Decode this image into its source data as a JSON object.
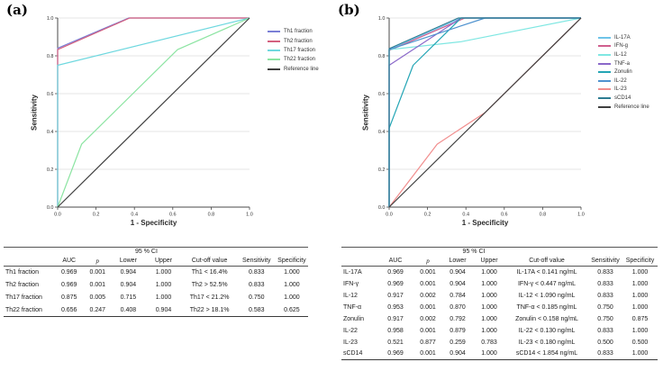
{
  "figure": {
    "panel_a_label": "(a)",
    "panel_b_label": "(b)"
  },
  "chart_data": [
    {
      "type": "line",
      "title": "",
      "xlabel": "1 - Specificity",
      "ylabel": "Sensitivity",
      "xlim": [
        0.0,
        1.0
      ],
      "ylim": [
        0.0,
        1.0
      ],
      "xticks": [
        "0.0",
        "0.2",
        "0.4",
        "0.6",
        "0.8",
        "1.0"
      ],
      "yticks": [
        "0.0",
        "0.2",
        "0.4",
        "0.6",
        "0.8",
        "1.0"
      ],
      "grid": "horizontal",
      "legend_position": "right",
      "series": [
        {
          "name": "Th1 fraction",
          "color": "#7b7fd6",
          "points": [
            [
              0,
              0
            ],
            [
              0,
              0.84
            ],
            [
              0.37,
              1
            ],
            [
              1,
              1
            ]
          ]
        },
        {
          "name": "Th2 fraction",
          "color": "#d4607e",
          "points": [
            [
              0,
              0
            ],
            [
              0,
              0.833
            ],
            [
              0.375,
              1
            ],
            [
              1,
              1
            ]
          ]
        },
        {
          "name": "Th17 fraction",
          "color": "#6fd8df",
          "points": [
            [
              0,
              0
            ],
            [
              0,
              0.75
            ],
            [
              1,
              1
            ]
          ]
        },
        {
          "name": "Th22 fraction",
          "color": "#8ce4a2",
          "points": [
            [
              0,
              0
            ],
            [
              0.125,
              0.333
            ],
            [
              0.625,
              0.833
            ],
            [
              1,
              1
            ]
          ]
        },
        {
          "name": "Reference line",
          "color": "#3f3f3f",
          "points": [
            [
              0,
              0
            ],
            [
              1,
              1
            ]
          ]
        }
      ]
    },
    {
      "type": "line",
      "title": "",
      "xlabel": "1 - Specificity",
      "ylabel": "Sensitivity",
      "xlim": [
        0.0,
        1.0
      ],
      "ylim": [
        0.0,
        1.0
      ],
      "xticks": [
        "0.0",
        "0.2",
        "0.4",
        "0.6",
        "0.8",
        "1.0"
      ],
      "yticks": [
        "0.0",
        "0.2",
        "0.4",
        "0.6",
        "0.8",
        "1.0"
      ],
      "grid": "horizontal",
      "legend_position": "right",
      "series": [
        {
          "name": "IL-17A",
          "color": "#6fc4e8",
          "points": [
            [
              0,
              0
            ],
            [
              0,
              0.833
            ],
            [
              0.375,
              1
            ],
            [
              1,
              1
            ]
          ]
        },
        {
          "name": "IFN-g",
          "color": "#d05f8e",
          "points": [
            [
              0,
              0
            ],
            [
              0,
              0.828
            ],
            [
              0.395,
              1
            ],
            [
              1,
              1
            ]
          ]
        },
        {
          "name": "IL-12",
          "color": "#7fe7e2",
          "points": [
            [
              0,
              0
            ],
            [
              0,
              0.833
            ],
            [
              0.375,
              0.875
            ],
            [
              1,
              1
            ]
          ]
        },
        {
          "name": "TNF-a",
          "color": "#8a68c9",
          "points": [
            [
              0,
              0
            ],
            [
              0,
              0.75
            ],
            [
              0.375,
              1
            ],
            [
              1,
              1
            ]
          ]
        },
        {
          "name": "Zonulin",
          "color": "#24a5b5",
          "points": [
            [
              0,
              0
            ],
            [
              0,
              0.417
            ],
            [
              0.125,
              0.75
            ],
            [
              0.375,
              1
            ],
            [
              1,
              1
            ]
          ]
        },
        {
          "name": "IL-22",
          "color": "#4f92cf",
          "points": [
            [
              0,
              0
            ],
            [
              0,
              0.833
            ],
            [
              0.5,
              1
            ],
            [
              1,
              1
            ]
          ]
        },
        {
          "name": "IL-23",
          "color": "#f18e8e",
          "points": [
            [
              0,
              0
            ],
            [
              0.25,
              0.333
            ],
            [
              0.5,
              0.5
            ],
            [
              1,
              1
            ]
          ]
        },
        {
          "name": "sCD14",
          "color": "#2e7c92",
          "points": [
            [
              0,
              0
            ],
            [
              0,
              0.838
            ],
            [
              0.36,
              1
            ],
            [
              1,
              1
            ]
          ]
        },
        {
          "name": "Reference line",
          "color": "#3f3f3f",
          "points": [
            [
              0,
              0
            ],
            [
              1,
              1
            ]
          ]
        }
      ]
    }
  ],
  "tables": [
    {
      "ci_header": "95 % CI",
      "columns": [
        "",
        "AUC",
        "p",
        "Lower",
        "Upper",
        "Cut-off value",
        "Sensitivity",
        "Specificity"
      ],
      "rows": [
        [
          "Th1 fraction",
          "0.969",
          "0.001",
          "0.904",
          "1.000",
          "Th1 < 16.4%",
          "0.833",
          "1.000"
        ],
        [
          "Th2 fraction",
          "0.969",
          "0.001",
          "0.904",
          "1.000",
          "Th2 > 52.5%",
          "0.833",
          "1.000"
        ],
        [
          "Th17 fraction",
          "0.875",
          "0.005",
          "0.715",
          "1.000",
          "Th17 < 21.2%",
          "0.750",
          "1.000"
        ],
        [
          "Th22 fraction",
          "0.656",
          "0.247",
          "0.408",
          "0.904",
          "Th22 > 18.1%",
          "0.583",
          "0.625"
        ]
      ]
    },
    {
      "ci_header": "95 % CI",
      "columns": [
        "",
        "AUC",
        "p",
        "Lower",
        "Upper",
        "Cut-off value",
        "Sensitivity",
        "Specificity"
      ],
      "rows": [
        [
          "IL-17A",
          "0.969",
          "0.001",
          "0.904",
          "1.000",
          "IL-17A < 0.141 ng/mL",
          "0.833",
          "1.000"
        ],
        [
          "IFN-γ",
          "0.969",
          "0.001",
          "0.904",
          "1.000",
          "IFN-γ < 0.447 ng/mL",
          "0.833",
          "1.000"
        ],
        [
          "IL-12",
          "0.917",
          "0.002",
          "0.784",
          "1.000",
          "IL-12 < 1.090 ng/mL",
          "0.833",
          "1.000"
        ],
        [
          "TNF-α",
          "0.953",
          "0.001",
          "0.870",
          "1.000",
          "TNF-α < 0.185 ng/mL",
          "0.750",
          "1.000"
        ],
        [
          "Zonulin",
          "0.917",
          "0.002",
          "0.792",
          "1.000",
          "Zonulin < 0.158 ng/mL",
          "0.750",
          "0.875"
        ],
        [
          "IL-22",
          "0.958",
          "0.001",
          "0.879",
          "1.000",
          "IL-22 < 0.130 ng/mL",
          "0.833",
          "1.000"
        ],
        [
          "IL-23",
          "0.521",
          "0.877",
          "0.259",
          "0.783",
          "IL-23 < 0.180 ng/mL",
          "0.500",
          "0.500"
        ],
        [
          "sCD14",
          "0.969",
          "0.001",
          "0.904",
          "1.000",
          "sCD14 < 1.854 ng/mL",
          "0.833",
          "1.000"
        ]
      ]
    }
  ]
}
